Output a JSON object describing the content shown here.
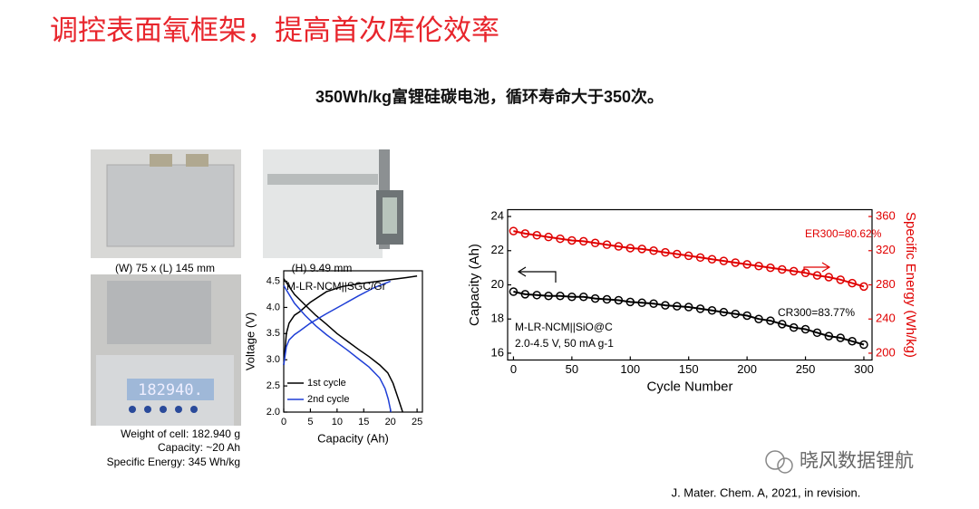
{
  "slide": {
    "title": "调控表面氧框架，提高首次库伦效率",
    "subtitle": "350Wh/kg富锂硅碳电池，循环寿命大于350次。",
    "photo_captions": [
      "(W) 75 x (L) 145 mm",
      "(H) 9.49 mm"
    ],
    "scale_display": "182940.",
    "cell_specs": [
      "Weight of cell: 182.940 g",
      "Capacity: ~20 Ah",
      "Specific Energy: 345 Wh/kg"
    ],
    "citation": "J. Mater. Chem. A, 2021, in revision.",
    "watermark": "晓风数据锂航"
  },
  "chart_data": [
    {
      "type": "line",
      "annotation": "M-LR-NCM||SGC/Gr",
      "x_label": "Capacity (Ah)",
      "y_label": "Voltage (V)",
      "xlim": [
        0,
        26
      ],
      "xticks": [
        0,
        5,
        10,
        15,
        20,
        25
      ],
      "ylim": [
        2.0,
        4.7
      ],
      "yticks": [
        {
          "value": 2.0,
          "label": "2.0"
        },
        2.5,
        {
          "value": 3.0,
          "label": "3.0"
        },
        3.5,
        {
          "value": 4.0,
          "label": "4.0"
        },
        4.5
      ],
      "legend": "lower-left",
      "series": [
        {
          "name": "1st cycle",
          "color": "#000000",
          "x": [
            0,
            0.5,
            1,
            2,
            3,
            5,
            8,
            11,
            14,
            17,
            20,
            23,
            25,
            null,
            0,
            2,
            4,
            6,
            8,
            10,
            12,
            14,
            16,
            18,
            19.5,
            20.5,
            21.5,
            22.3
          ],
          "values": [
            2.9,
            3.5,
            3.7,
            3.85,
            3.92,
            4.1,
            4.3,
            4.4,
            4.45,
            4.49,
            4.53,
            4.57,
            4.6,
            null,
            4.55,
            4.25,
            4.05,
            3.85,
            3.68,
            3.5,
            3.35,
            3.2,
            3.06,
            2.9,
            2.75,
            2.55,
            2.25,
            2.0
          ]
        },
        {
          "name": "2nd cycle",
          "color": "#1f3fd6",
          "x": [
            0,
            0.5,
            1,
            2,
            3,
            5,
            8,
            11,
            14,
            17,
            20,
            null,
            0,
            2,
            4,
            6,
            8,
            10,
            12,
            14,
            16,
            18,
            19,
            19.6,
            20.1
          ],
          "values": [
            2.9,
            3.25,
            3.38,
            3.48,
            3.55,
            3.7,
            3.88,
            4.05,
            4.22,
            4.38,
            4.5,
            null,
            4.42,
            4.08,
            3.85,
            3.65,
            3.48,
            3.33,
            3.18,
            3.02,
            2.86,
            2.65,
            2.45,
            2.25,
            2.0
          ]
        }
      ]
    },
    {
      "type": "line",
      "markers": true,
      "x_label": "Cycle Number",
      "y_label": "Capacity (Ah)",
      "y2_label": "Specific Energy (Wh/kg)",
      "xlim": [
        -5,
        307
      ],
      "xticks": [
        0,
        50,
        100,
        150,
        200,
        250,
        300
      ],
      "ylim": [
        15.6,
        24.4
      ],
      "yticks": [
        16,
        18,
        20,
        22,
        24
      ],
      "y2lim": [
        192,
        368
      ],
      "y2ticks": [
        200,
        240,
        280,
        320,
        360
      ],
      "y2_color": "#e00000",
      "annotations": [
        "ER300=80.62%",
        "CR300=83.77%",
        "M-LR-NCM||SiO@C",
        "2.0-4.5 V, 50 mA g-1"
      ],
      "x": [
        0,
        10,
        20,
        30,
        40,
        50,
        60,
        70,
        80,
        90,
        100,
        110,
        120,
        130,
        140,
        150,
        160,
        170,
        180,
        190,
        200,
        210,
        220,
        230,
        240,
        250,
        260,
        270,
        280,
        290,
        300
      ],
      "series": [
        {
          "color": "#000000",
          "values": [
            19.6,
            19.45,
            19.4,
            19.35,
            19.35,
            19.3,
            19.3,
            19.2,
            19.15,
            19.1,
            19.0,
            18.95,
            18.9,
            18.8,
            18.75,
            18.7,
            18.6,
            18.5,
            18.4,
            18.3,
            18.2,
            18.0,
            17.9,
            17.7,
            17.5,
            17.4,
            17.2,
            17.0,
            16.9,
            16.7,
            16.5
          ]
        },
        {
          "color": "#e00000",
          "axis": "y2",
          "values": [
            343,
            340,
            338,
            336,
            334,
            332,
            331,
            329,
            327,
            325,
            323,
            322,
            320,
            318,
            316,
            314,
            312,
            310,
            308,
            306,
            304,
            302,
            300,
            298,
            296,
            294,
            291,
            289,
            286,
            282,
            278
          ]
        }
      ]
    }
  ]
}
